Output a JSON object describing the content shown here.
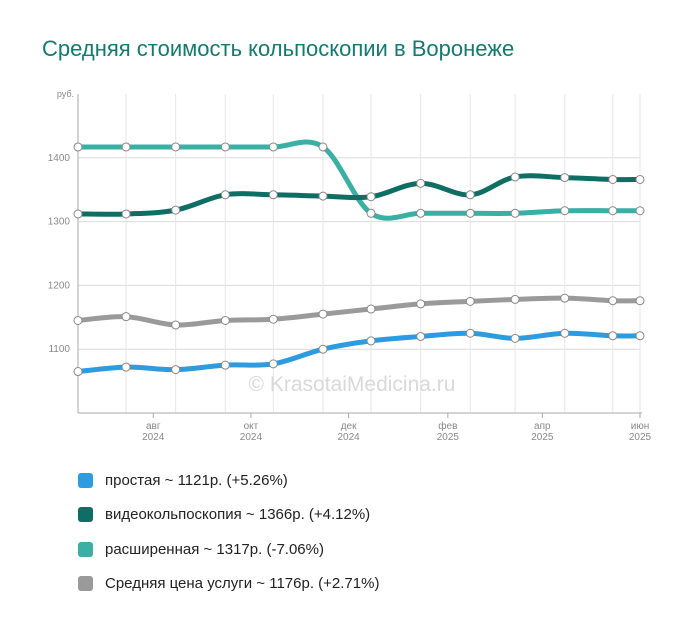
{
  "header": {
    "title": "Средняя стоимость кольпоскопии в Воронеже"
  },
  "watermark": "© KrasotaiMedicina.ru",
  "chart_data": {
    "type": "line",
    "ylabel": "руб.",
    "ylim": [
      1000,
      1500
    ],
    "yticks": [
      1100,
      1200,
      1300,
      1400
    ],
    "x_range": [
      "2024-06-15",
      "2025-06-01"
    ],
    "xticks": [
      {
        "date": "2024-08-01",
        "month": "авг",
        "year": "2024"
      },
      {
        "date": "2024-10-01",
        "month": "окт",
        "year": "2024"
      },
      {
        "date": "2024-12-01",
        "month": "дек",
        "year": "2024"
      },
      {
        "date": "2025-02-01",
        "month": "фев",
        "year": "2025"
      },
      {
        "date": "2025-04-01",
        "month": "апр",
        "year": "2025"
      },
      {
        "date": "2025-06-01",
        "month": "июн",
        "year": "2025"
      }
    ],
    "x": [
      "2024-06-15",
      "2024-07-15",
      "2024-08-15",
      "2024-09-15",
      "2024-10-15",
      "2024-11-15",
      "2024-12-15",
      "2025-01-15",
      "2025-02-15",
      "2025-03-15",
      "2025-04-15",
      "2025-05-15",
      "2025-06-01"
    ],
    "grid": true,
    "series": [
      {
        "name": "простая",
        "color": "#2d9be0",
        "values": [
          1065,
          1072,
          1068,
          1075,
          1077,
          1100,
          1113,
          1120,
          1125,
          1117,
          1125,
          1121,
          1121
        ]
      },
      {
        "name": "видеокольпоскопия",
        "color": "#0f6e63",
        "values": [
          1312,
          1312,
          1318,
          1342,
          1342,
          1340,
          1339,
          1360,
          1342,
          1370,
          1369,
          1366,
          1366
        ]
      },
      {
        "name": "расширенная",
        "color": "#3aafa3",
        "values": [
          1417,
          1417,
          1417,
          1417,
          1417,
          1417,
          1313,
          1313,
          1313,
          1313,
          1317,
          1317,
          1317
        ]
      },
      {
        "name": "Средняя цена услуги",
        "color": "#9a9a9a",
        "values": [
          1145,
          1151,
          1138,
          1145,
          1147,
          1155,
          1163,
          1171,
          1175,
          1178,
          1180,
          1176,
          1176
        ]
      }
    ]
  },
  "legend": {
    "items": [
      {
        "text": "простая ~ 1121р. (+5.26%)",
        "color": "#2d9be0"
      },
      {
        "text": "видеокольпоскопия ~ 1366р. (+4.12%)",
        "color": "#0f6e63"
      },
      {
        "text": "расширенная ~ 1317р. (-7.06%)",
        "color": "#3aafa3"
      },
      {
        "text": "Средняя цена услуги ~ 1176р. (+2.71%)",
        "color": "#9a9a9a"
      }
    ]
  }
}
